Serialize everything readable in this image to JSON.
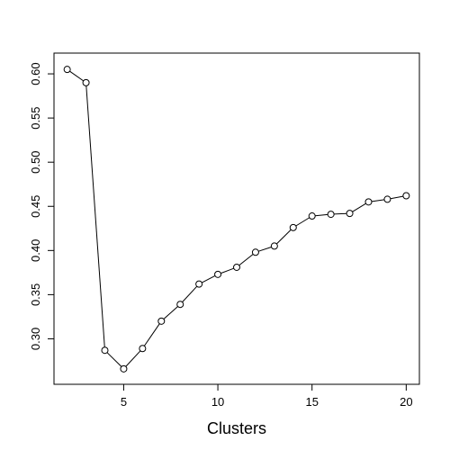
{
  "chart_data": {
    "type": "line",
    "title": "",
    "xlabel": "Clusters",
    "ylabel": "",
    "xlim": [
      1.3,
      20.7
    ],
    "ylim": [
      0.2485,
      0.6235
    ],
    "grid": false,
    "legend": "none",
    "x_ticks": [
      5,
      10,
      15,
      20
    ],
    "x_tick_labels": [
      "5",
      "10",
      "15",
      "20"
    ],
    "y_ticks": [
      0.3,
      0.35,
      0.4,
      0.45,
      0.5,
      0.55,
      0.6
    ],
    "y_tick_labels": [
      "0.30",
      "0.35",
      "0.40",
      "0.45",
      "0.50",
      "0.55",
      "0.60"
    ],
    "marker": "open-circle",
    "line_color": "#000000",
    "series": [
      {
        "x": [
          2,
          3,
          4,
          5,
          6,
          7,
          8,
          9,
          10,
          11,
          12,
          13,
          14,
          15,
          16,
          17,
          18,
          19,
          20
        ],
        "values": [
          0.605,
          0.59,
          0.287,
          0.266,
          0.289,
          0.32,
          0.339,
          0.362,
          0.373,
          0.381,
          0.398,
          0.405,
          0.426,
          0.439,
          0.441,
          0.442,
          0.455,
          0.458,
          0.462
        ]
      }
    ]
  }
}
